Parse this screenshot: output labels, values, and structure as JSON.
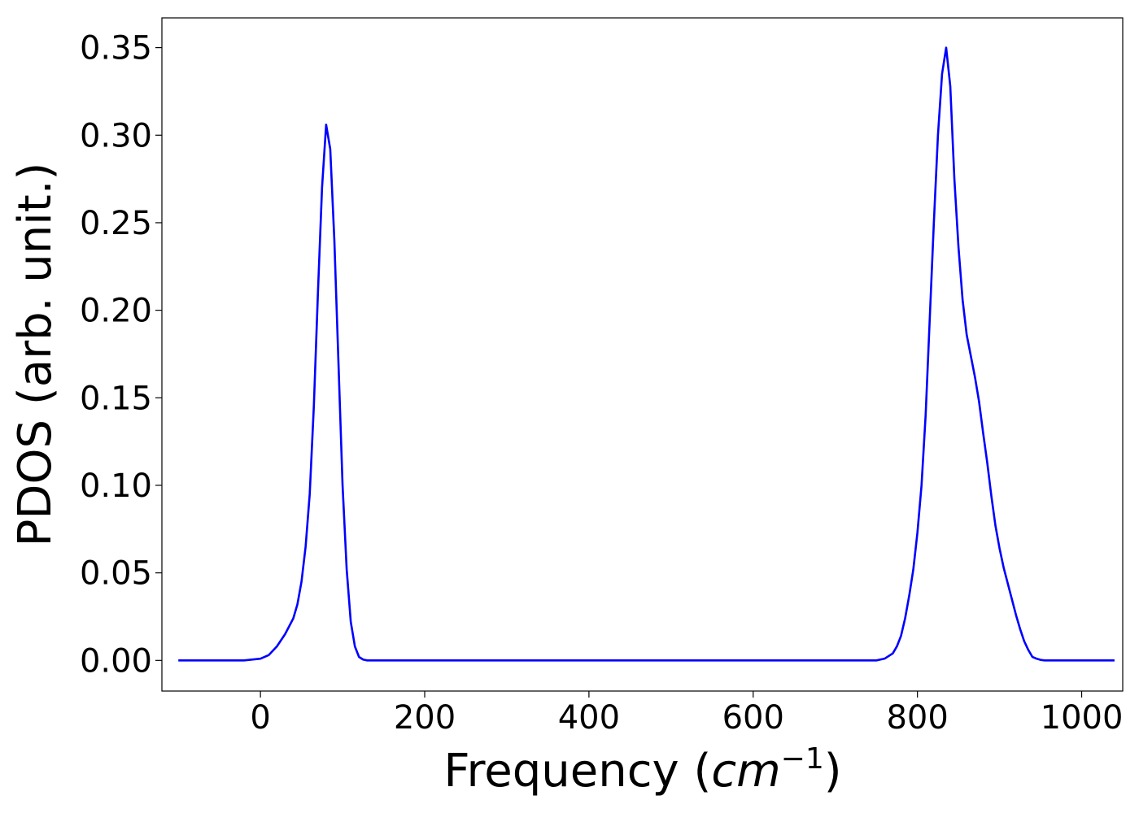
{
  "chart_data": {
    "type": "line",
    "title": "",
    "xlabel": "Frequency",
    "xlabel_unit_base": "cm",
    "xlabel_unit_exp": "−1",
    "ylabel": "PDOS (arb. unit.)",
    "xlim": [
      -120,
      1050
    ],
    "ylim": [
      -0.0175,
      0.367
    ],
    "xticks": [
      0,
      200,
      400,
      600,
      800,
      1000
    ],
    "xtick_labels": [
      "0",
      "200",
      "400",
      "600",
      "800",
      "1000"
    ],
    "yticks": [
      0.0,
      0.05,
      0.1,
      0.15,
      0.2,
      0.25,
      0.3,
      0.35
    ],
    "ytick_labels": [
      "0.00",
      "0.05",
      "0.10",
      "0.15",
      "0.20",
      "0.25",
      "0.30",
      "0.35"
    ],
    "grid": false,
    "series": [
      {
        "color": "#0000ff",
        "x": [
          -100,
          -60,
          -20,
          0,
          10,
          20,
          30,
          40,
          45,
          50,
          55,
          60,
          65,
          70,
          75,
          80,
          85,
          90,
          95,
          100,
          105,
          110,
          115,
          120,
          125,
          130,
          140,
          160,
          200,
          300,
          400,
          500,
          600,
          700,
          750,
          760,
          770,
          775,
          780,
          785,
          790,
          795,
          800,
          805,
          810,
          815,
          820,
          825,
          830,
          835,
          840,
          845,
          850,
          855,
          860,
          865,
          870,
          875,
          880,
          885,
          890,
          895,
          900,
          905,
          910,
          915,
          920,
          925,
          930,
          935,
          940,
          945,
          950,
          955,
          960,
          965,
          970,
          980,
          1000,
          1040
        ],
        "y": [
          0.0,
          0.0,
          0.0,
          0.001,
          0.003,
          0.008,
          0.015,
          0.024,
          0.032,
          0.045,
          0.065,
          0.095,
          0.145,
          0.21,
          0.27,
          0.306,
          0.292,
          0.24,
          0.17,
          0.1,
          0.052,
          0.022,
          0.008,
          0.002,
          0.0005,
          0.0,
          0.0,
          0.0,
          0.0,
          0.0,
          0.0,
          0.0,
          0.0,
          0.0,
          0.0,
          0.001,
          0.004,
          0.008,
          0.014,
          0.024,
          0.037,
          0.052,
          0.073,
          0.1,
          0.14,
          0.195,
          0.25,
          0.3,
          0.335,
          0.35,
          0.328,
          0.275,
          0.236,
          0.206,
          0.186,
          0.174,
          0.162,
          0.148,
          0.13,
          0.113,
          0.094,
          0.077,
          0.064,
          0.053,
          0.044,
          0.035,
          0.026,
          0.018,
          0.011,
          0.006,
          0.002,
          0.001,
          0.0003,
          0.0,
          0.0,
          0.0,
          0.0,
          0.0,
          0.0,
          0.0
        ]
      }
    ]
  }
}
